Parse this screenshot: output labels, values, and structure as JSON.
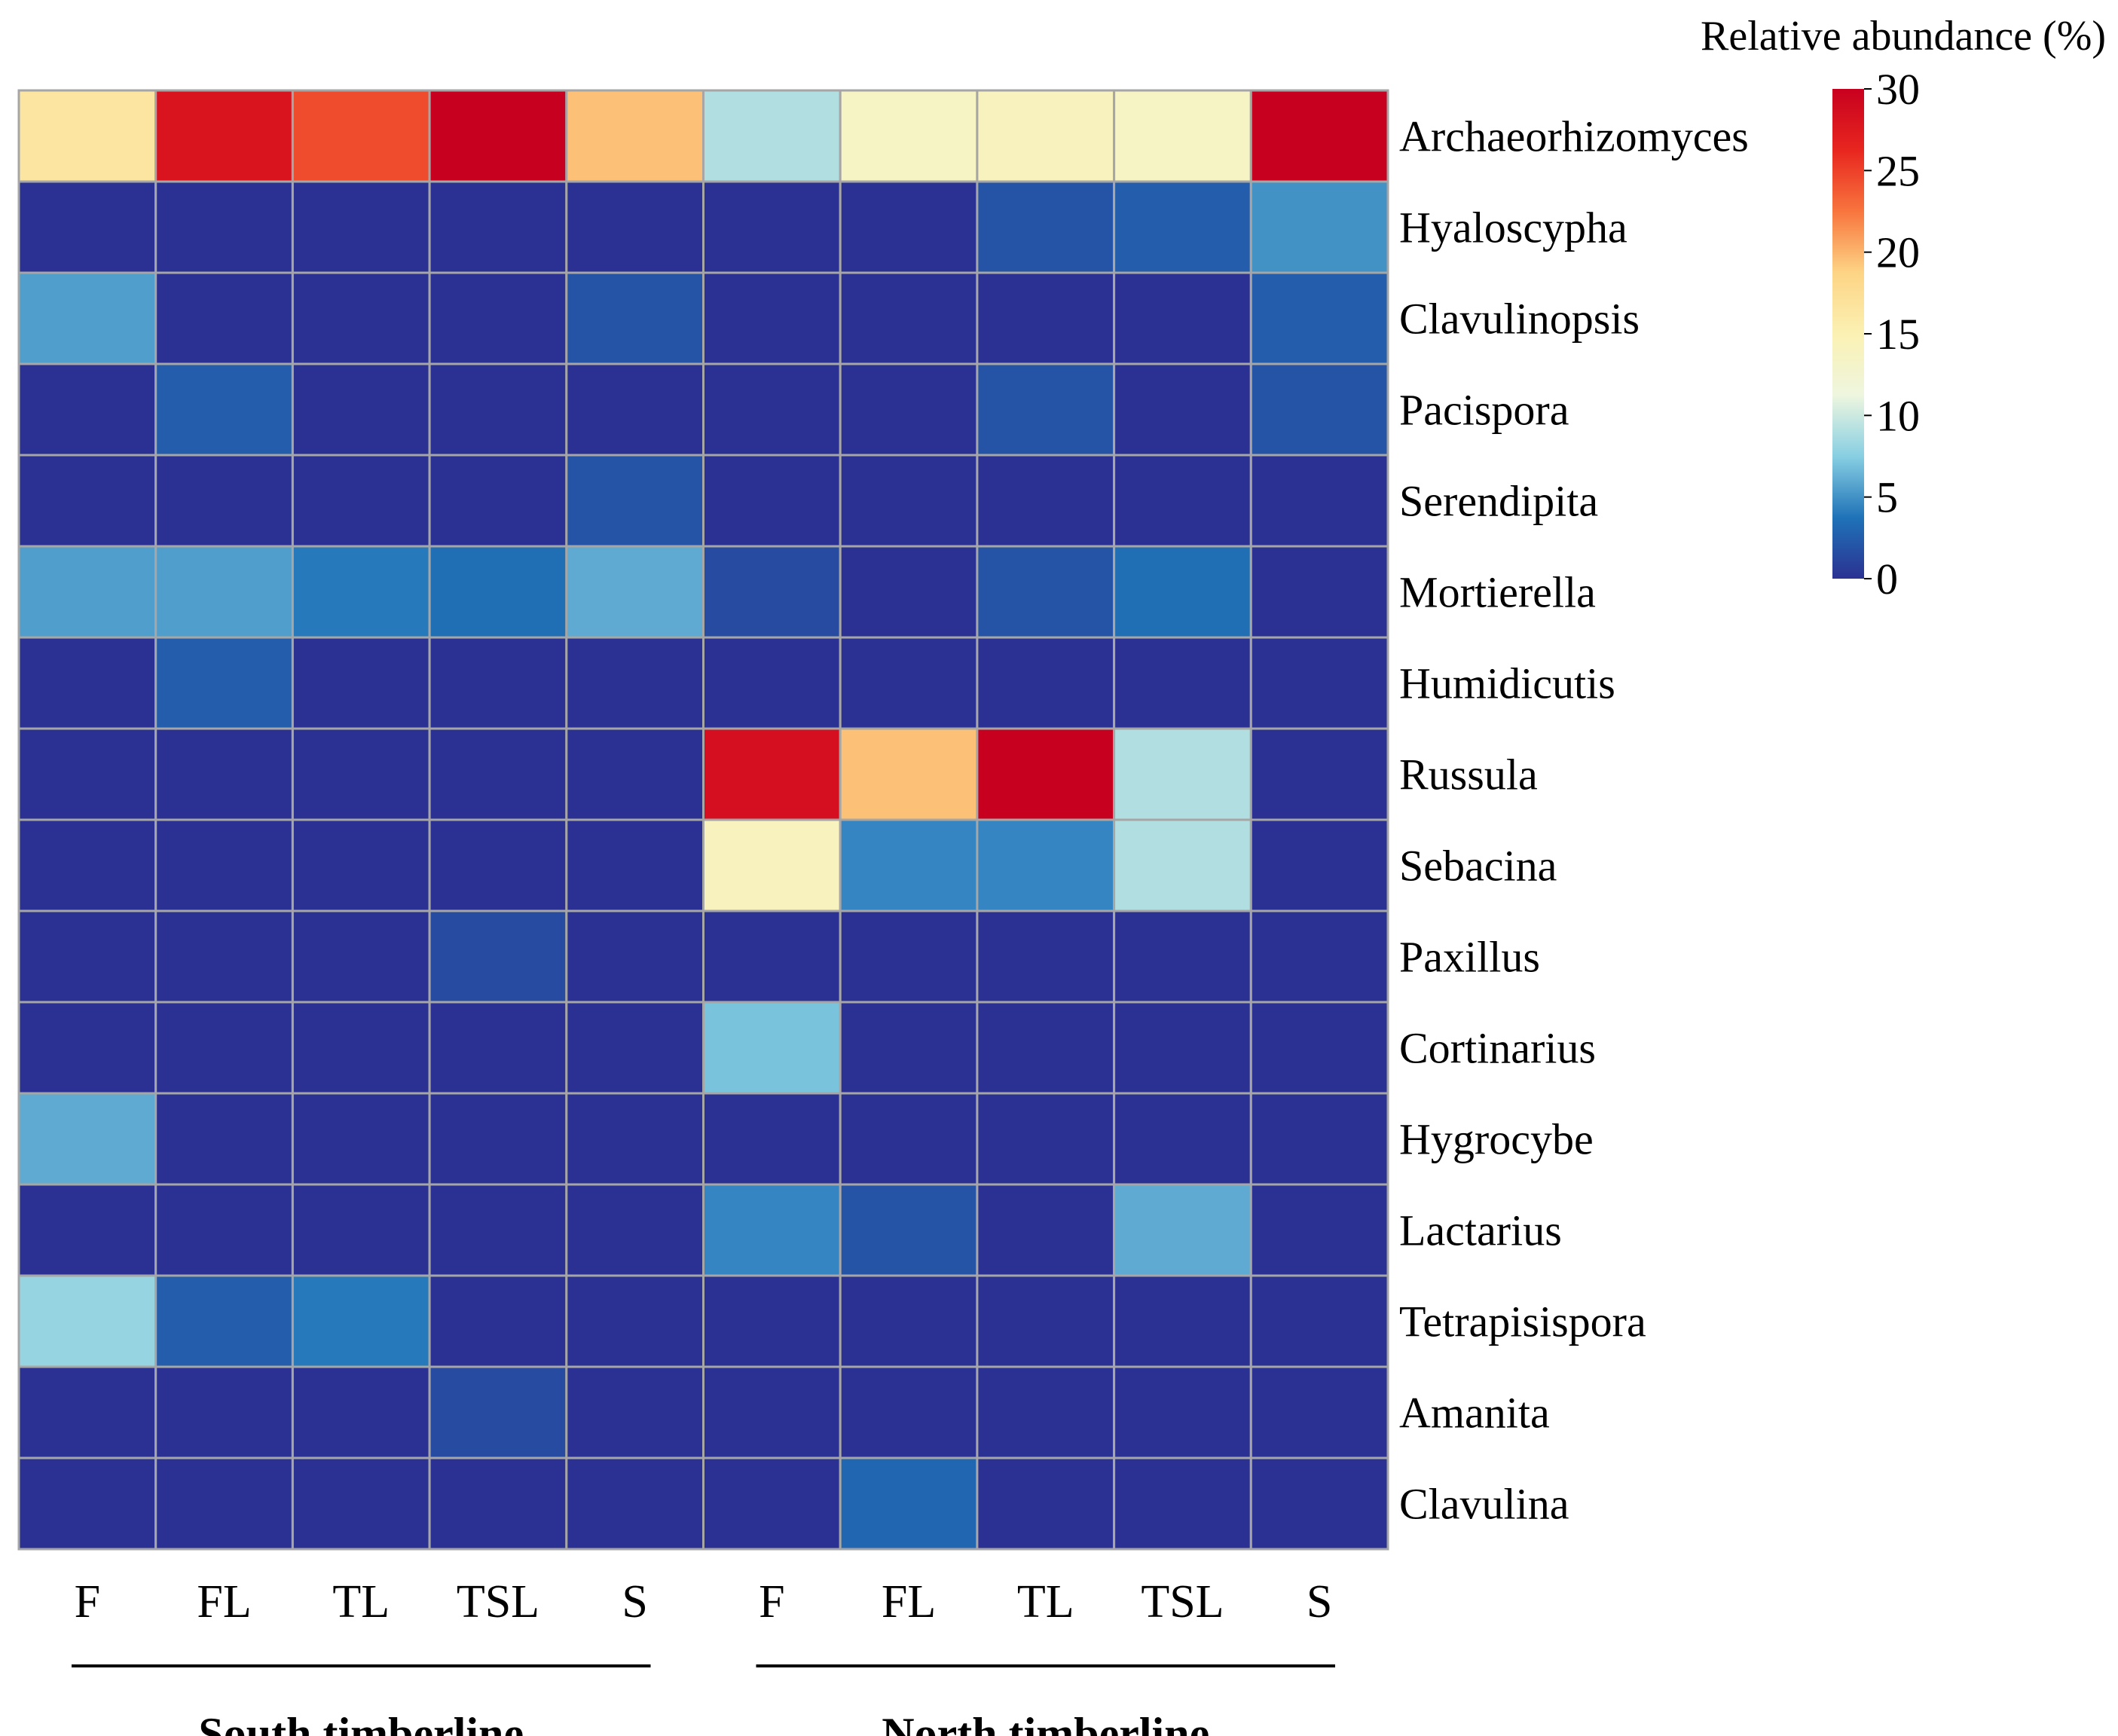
{
  "chart_data": {
    "type": "heatmap",
    "legend_title": "Relative abundance (%)",
    "color_range": [
      0,
      30
    ],
    "legend_ticks": [
      30,
      25,
      20,
      15,
      10,
      5,
      0
    ],
    "colormap": [
      "#2b3192",
      "#1f73b8",
      "#88cfe3",
      "#eef6df",
      "#fbf1b3",
      "#fdd485",
      "#f8753e",
      "#e8261f",
      "#c8001f"
    ],
    "rows": [
      "Archaeorhizomyces",
      "Hyaloscypha",
      "Clavulinopsis",
      "Pacispora",
      "Serendipita",
      "Mortierella",
      "Humidicutis",
      "Russula",
      "Sebacina",
      "Paxillus",
      "Cortinarius",
      "Hygrocybe",
      "Lactarius",
      "Tetrapisispora",
      "Amanita",
      "Clavulina"
    ],
    "columns": [
      "F",
      "FL",
      "TL",
      "TSL",
      "S",
      "F",
      "FL",
      "TL",
      "TSL",
      "S"
    ],
    "groups": [
      {
        "label": "South timberline",
        "columns": [
          0,
          4
        ]
      },
      {
        "label": "North timberline",
        "columns": [
          5,
          9
        ]
      }
    ],
    "values": [
      [
        16.5,
        28.0,
        24.5,
        30.0,
        19.5,
        9.0,
        13.5,
        14.0,
        13.5,
        30.0
      ],
      [
        0.0,
        0.0,
        0.0,
        0.0,
        0.0,
        0.0,
        0.0,
        2.0,
        2.5,
        5.0
      ],
      [
        5.5,
        0.0,
        0.0,
        0.0,
        2.0,
        0.0,
        0.0,
        0.0,
        0.0,
        2.5
      ],
      [
        0.0,
        2.5,
        0.0,
        0.0,
        0.0,
        0.0,
        0.0,
        2.0,
        0.0,
        2.0
      ],
      [
        0.0,
        0.0,
        0.0,
        0.0,
        2.0,
        0.0,
        0.0,
        0.0,
        0.0,
        0.0
      ],
      [
        5.5,
        5.5,
        4.0,
        3.5,
        6.0,
        1.5,
        0.0,
        2.0,
        3.5,
        0.0
      ],
      [
        0.0,
        2.5,
        0.0,
        0.0,
        0.0,
        0.0,
        0.0,
        0.0,
        0.0,
        0.0
      ],
      [
        0.0,
        0.0,
        0.0,
        0.0,
        0.0,
        28.5,
        19.5,
        30.0,
        9.0,
        0.0
      ],
      [
        0.0,
        0.0,
        0.0,
        0.0,
        0.0,
        14.0,
        4.5,
        4.5,
        9.0,
        0.0
      ],
      [
        0.0,
        0.0,
        0.0,
        1.5,
        0.0,
        0.0,
        0.0,
        0.0,
        0.0,
        0.0
      ],
      [
        0.0,
        0.0,
        0.0,
        0.0,
        0.0,
        7.0,
        0.0,
        0.0,
        0.0,
        0.0
      ],
      [
        6.0,
        0.0,
        0.0,
        0.0,
        0.0,
        0.0,
        0.0,
        0.0,
        0.0,
        0.0
      ],
      [
        0.0,
        0.0,
        0.0,
        0.0,
        0.0,
        4.5,
        2.0,
        0.0,
        6.0,
        0.0
      ],
      [
        8.0,
        2.5,
        4.0,
        0.0,
        0.0,
        0.0,
        0.0,
        0.0,
        0.0,
        0.0
      ],
      [
        0.0,
        0.0,
        0.0,
        1.5,
        0.0,
        0.0,
        0.0,
        0.0,
        0.0,
        0.0
      ],
      [
        0.0,
        0.0,
        0.0,
        0.0,
        0.0,
        0.0,
        3.0,
        0.0,
        0.0,
        0.0
      ]
    ],
    "cell_border_color": "#a6a6a6"
  }
}
